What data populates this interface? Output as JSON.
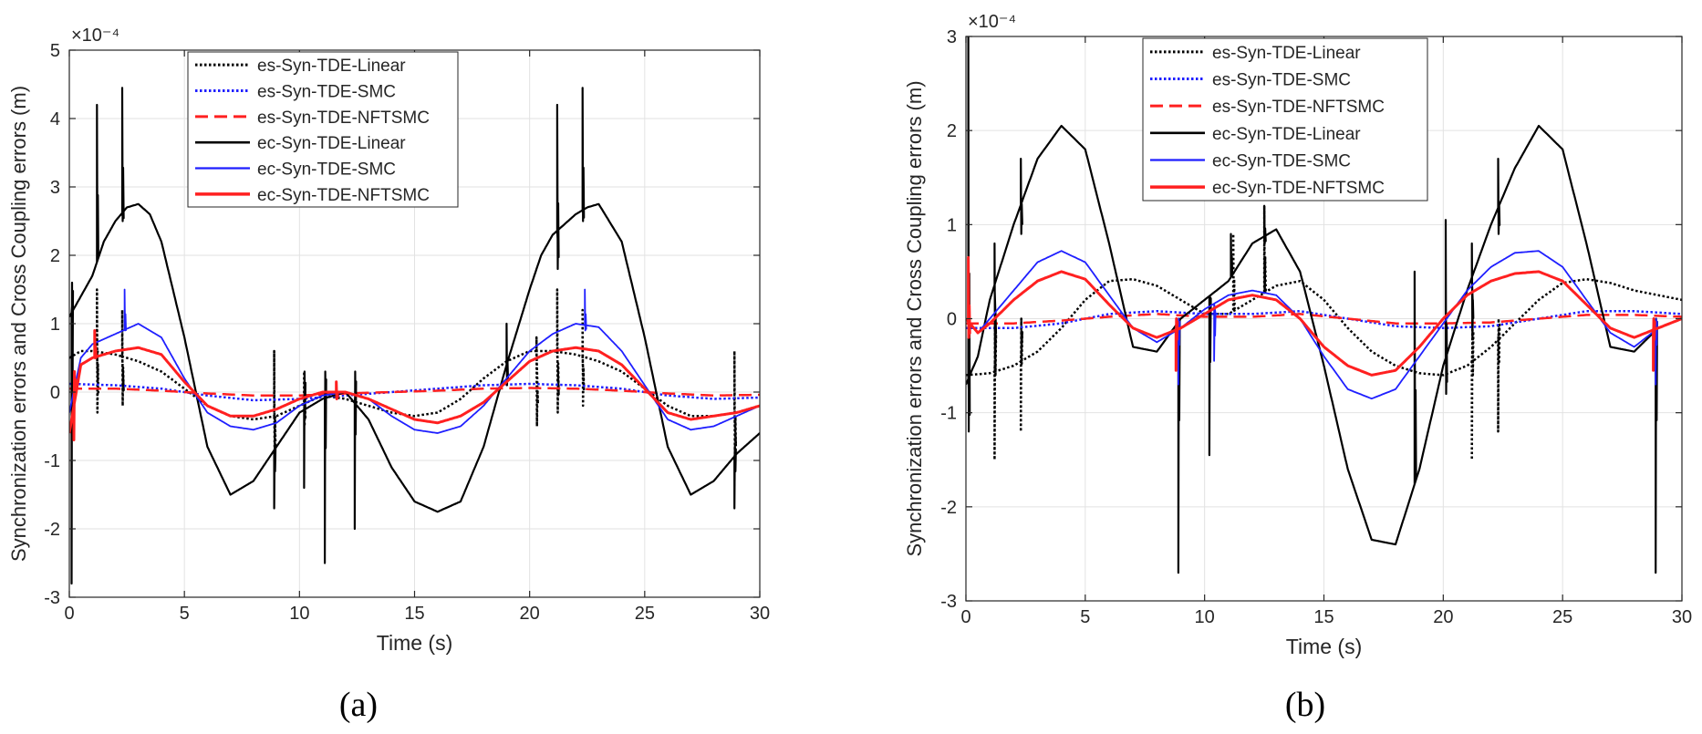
{
  "figure": {
    "panel_labels": [
      "(a)",
      "(b)"
    ]
  },
  "colors": {
    "black": "#000000",
    "blue": "#1f1fff",
    "red": "#ff2020",
    "grid": "#e2e2e2",
    "axis": "#262626"
  },
  "chart_data": [
    {
      "type": "line",
      "panel": "(a)",
      "title": "",
      "xlabel": "Time (s)",
      "ylabel": "Synchronization errors and Cross Coupling errors (m)",
      "exponent_label": "×10⁻⁴",
      "xlim": [
        0,
        30
      ],
      "ylim": [
        -3,
        5
      ],
      "xticks": [
        0,
        5,
        10,
        15,
        20,
        25,
        30
      ],
      "yticks": [
        -3,
        -2,
        -1,
        0,
        1,
        2,
        3,
        4,
        5
      ],
      "grid": true,
      "legend_position": "top-center",
      "legend": [
        "es-Syn-TDE-Linear",
        "es-Syn-TDE-SMC",
        "es-Syn-TDE-NFTSMC",
        "ec-Syn-TDE-Linear",
        "ec-Syn-TDE-SMC",
        "ec-Syn-TDE-NFTSMC"
      ],
      "series": [
        {
          "name": "es-Syn-TDE-Linear",
          "color": "#000000",
          "style": "dotted",
          "width": 2.5,
          "x": [
            0,
            0.5,
            1,
            2,
            3,
            4,
            5,
            6,
            7,
            8,
            9,
            10,
            11,
            12,
            13,
            14,
            15,
            16,
            17,
            18,
            19,
            20,
            21,
            22,
            23,
            24,
            25,
            26,
            27,
            28,
            29,
            30
          ],
          "y": [
            0.5,
            0.6,
            0.6,
            0.55,
            0.45,
            0.3,
            0.05,
            -0.2,
            -0.35,
            -0.4,
            -0.35,
            -0.2,
            -0.05,
            -0.1,
            -0.2,
            -0.3,
            -0.35,
            -0.3,
            -0.1,
            0.2,
            0.45,
            0.6,
            0.6,
            0.55,
            0.45,
            0.3,
            0.05,
            -0.2,
            -0.35,
            -0.35,
            -0.3,
            -0.2
          ],
          "spikes": [
            [
              1.2,
              1.5,
              -0.3
            ],
            [
              2.3,
              1.2,
              -0.2
            ],
            [
              8.9,
              0.6,
              -1.0
            ],
            [
              10.2,
              0.3,
              -0.5
            ],
            [
              20.3,
              0.8,
              -0.5
            ],
            [
              21.2,
              1.5,
              -0.3
            ],
            [
              22.3,
              1.2,
              -0.2
            ],
            [
              28.9,
              0.6,
              -1.0
            ]
          ]
        },
        {
          "name": "es-Syn-TDE-SMC",
          "color": "#1f1fff",
          "style": "dotted",
          "width": 2.5,
          "x": [
            0,
            2,
            4,
            6,
            8,
            10,
            12,
            14,
            16,
            18,
            20,
            22,
            24,
            26,
            28,
            30
          ],
          "y": [
            0.12,
            0.1,
            0.05,
            -0.05,
            -0.12,
            -0.1,
            -0.05,
            0.0,
            0.05,
            0.1,
            0.12,
            0.1,
            0.05,
            -0.05,
            -0.1,
            -0.08
          ],
          "spikes": []
        },
        {
          "name": "es-Syn-TDE-NFTSMC",
          "color": "#ff2020",
          "style": "dashed",
          "width": 2.5,
          "x": [
            0,
            2,
            4,
            6,
            8,
            10,
            12,
            14,
            16,
            18,
            20,
            22,
            24,
            26,
            28,
            30
          ],
          "y": [
            0.05,
            0.05,
            0.02,
            -0.02,
            -0.05,
            -0.05,
            -0.02,
            0.0,
            0.02,
            0.05,
            0.06,
            0.05,
            0.02,
            -0.02,
            -0.05,
            -0.04
          ],
          "spikes": []
        },
        {
          "name": "ec-Syn-TDE-Linear",
          "color": "#000000",
          "style": "solid",
          "width": 2.2,
          "x": [
            0,
            0.5,
            1,
            1.5,
            2,
            2.5,
            3,
            3.5,
            4,
            5,
            6,
            7,
            8,
            9,
            10,
            11,
            12,
            13,
            14,
            15,
            16,
            17,
            18,
            19,
            20,
            20.5,
            21,
            22,
            22.5,
            23,
            24,
            25,
            26,
            27,
            28,
            29,
            30
          ],
          "y": [
            1.1,
            1.4,
            1.7,
            2.2,
            2.5,
            2.7,
            2.75,
            2.6,
            2.2,
            0.8,
            -0.8,
            -1.5,
            -1.3,
            -0.8,
            -0.3,
            -0.1,
            0.0,
            -0.4,
            -1.1,
            -1.6,
            -1.75,
            -1.6,
            -0.8,
            0.4,
            1.5,
            2.0,
            2.3,
            2.6,
            2.7,
            2.75,
            2.2,
            0.8,
            -0.8,
            -1.5,
            -1.3,
            -0.9,
            -0.6
          ],
          "spikes": [
            [
              0.1,
              -2.8,
              1.6
            ],
            [
              1.2,
              4.2,
              2.0
            ],
            [
              2.3,
              4.45,
              2.5
            ],
            [
              8.9,
              -1.7,
              -0.8
            ],
            [
              10.2,
              -1.4,
              0.3
            ],
            [
              11.1,
              -2.5,
              0.3
            ],
            [
              12.4,
              -2.0,
              0.3
            ],
            [
              19.0,
              1.0,
              0.1
            ],
            [
              21.2,
              4.2,
              1.8
            ],
            [
              22.3,
              4.45,
              2.5
            ],
            [
              28.9,
              -1.7,
              -0.8
            ]
          ]
        },
        {
          "name": "ec-Syn-TDE-SMC",
          "color": "#1f1fff",
          "style": "solid",
          "width": 1.8,
          "x": [
            0,
            0.5,
            1,
            2,
            3,
            4,
            5,
            6,
            7,
            8,
            9,
            10,
            11,
            12,
            13,
            14,
            15,
            16,
            17,
            18,
            19,
            20,
            21,
            22,
            23,
            24,
            25,
            26,
            27,
            28,
            29,
            30
          ],
          "y": [
            -0.3,
            0.5,
            0.7,
            0.85,
            1.0,
            0.8,
            0.2,
            -0.3,
            -0.5,
            -0.55,
            -0.45,
            -0.2,
            -0.05,
            0.0,
            -0.1,
            -0.35,
            -0.55,
            -0.6,
            -0.5,
            -0.2,
            0.2,
            0.6,
            0.85,
            1.0,
            0.95,
            0.6,
            0.1,
            -0.4,
            -0.55,
            -0.5,
            -0.35,
            -0.2
          ],
          "spikes": [
            [
              2.4,
              1.5,
              0.9
            ],
            [
              22.4,
              1.5,
              0.9
            ]
          ]
        },
        {
          "name": "ec-Syn-TDE-NFTSMC",
          "color": "#ff2020",
          "style": "solid",
          "width": 3,
          "x": [
            0,
            0.5,
            1,
            2,
            3,
            4,
            5,
            6,
            7,
            8,
            9,
            10,
            11,
            12,
            13,
            14,
            15,
            16,
            17,
            18,
            19,
            20,
            21,
            22,
            23,
            24,
            25,
            26,
            27,
            28,
            29,
            30
          ],
          "y": [
            -0.6,
            0.4,
            0.5,
            0.6,
            0.65,
            0.55,
            0.15,
            -0.2,
            -0.35,
            -0.35,
            -0.25,
            -0.1,
            0.0,
            0.0,
            -0.1,
            -0.25,
            -0.4,
            -0.45,
            -0.35,
            -0.15,
            0.15,
            0.45,
            0.6,
            0.65,
            0.6,
            0.4,
            0.05,
            -0.3,
            -0.4,
            -0.35,
            -0.3,
            -0.2
          ],
          "spikes": [
            [
              0.2,
              -0.7,
              0.3
            ],
            [
              1.1,
              0.9,
              0.5
            ],
            [
              11.6,
              0.15,
              -0.1
            ]
          ]
        }
      ]
    },
    {
      "type": "line",
      "panel": "(b)",
      "title": "",
      "xlabel": "Time (s)",
      "ylabel": "Synchronization errors and Cross Coupling errors (m)",
      "exponent_label": "×10⁻⁴",
      "xlim": [
        0,
        30
      ],
      "ylim": [
        -3,
        3
      ],
      "xticks": [
        0,
        5,
        10,
        15,
        20,
        25,
        30
      ],
      "yticks": [
        -3,
        -2,
        -1,
        0,
        1,
        2,
        3
      ],
      "grid": true,
      "legend_position": "top-center",
      "legend": [
        "es-Syn-TDE-Linear",
        "es-Syn-TDE-SMC",
        "es-Syn-TDE-NFTSMC",
        "ec-Syn-TDE-Linear",
        "ec-Syn-TDE-SMC",
        "ec-Syn-TDE-NFTSMC"
      ],
      "series": [
        {
          "name": "es-Syn-TDE-Linear",
          "color": "#000000",
          "style": "dotted",
          "width": 2.5,
          "x": [
            0,
            1,
            2,
            3,
            4,
            5,
            6,
            7,
            8,
            9,
            10,
            11,
            12,
            13,
            14,
            15,
            16,
            17,
            18,
            19,
            20,
            21,
            22,
            23,
            24,
            25,
            26,
            27,
            28,
            29,
            30
          ],
          "y": [
            -0.6,
            -0.58,
            -0.5,
            -0.35,
            -0.1,
            0.2,
            0.4,
            0.42,
            0.35,
            0.2,
            0.05,
            0.05,
            0.2,
            0.35,
            0.4,
            0.2,
            -0.1,
            -0.35,
            -0.5,
            -0.58,
            -0.6,
            -0.5,
            -0.3,
            -0.05,
            0.2,
            0.38,
            0.42,
            0.38,
            0.3,
            0.25,
            0.2
          ],
          "spikes": [
            [
              1.2,
              -1.5,
              0.0
            ],
            [
              2.3,
              -1.2,
              0.0
            ],
            [
              11.2,
              0.9,
              0.1
            ],
            [
              12.5,
              1.2,
              0.3
            ],
            [
              21.2,
              -1.5,
              0.0
            ],
            [
              22.3,
              -1.2,
              0.0
            ]
          ]
        },
        {
          "name": "es-Syn-TDE-SMC",
          "color": "#1f1fff",
          "style": "dotted",
          "width": 2.5,
          "x": [
            0,
            2,
            4,
            6,
            8,
            10,
            12,
            14,
            16,
            18,
            20,
            22,
            24,
            26,
            28,
            30
          ],
          "y": [
            -0.1,
            -0.1,
            -0.05,
            0.05,
            0.08,
            0.05,
            0.05,
            0.08,
            0.0,
            -0.08,
            -0.1,
            -0.08,
            0.0,
            0.08,
            0.08,
            0.05
          ],
          "spikes": []
        },
        {
          "name": "es-Syn-TDE-NFTSMC",
          "color": "#ff2020",
          "style": "dashed",
          "width": 2.5,
          "x": [
            0,
            2,
            4,
            6,
            8,
            10,
            12,
            14,
            16,
            18,
            20,
            22,
            24,
            26,
            28,
            30
          ],
          "y": [
            -0.05,
            -0.05,
            -0.02,
            0.02,
            0.05,
            0.02,
            0.02,
            0.05,
            0.0,
            -0.05,
            -0.05,
            -0.04,
            0.0,
            0.04,
            0.04,
            0.02
          ],
          "spikes": []
        },
        {
          "name": "ec-Syn-TDE-Linear",
          "color": "#000000",
          "style": "solid",
          "width": 2.2,
          "x": [
            0,
            0.5,
            1,
            2,
            3,
            4,
            5,
            6,
            7,
            8,
            9,
            10,
            11,
            12,
            13,
            14,
            15,
            16,
            17,
            18,
            19,
            20,
            21,
            22,
            23,
            24,
            25,
            26,
            27,
            28,
            29,
            30
          ],
          "y": [
            -0.7,
            -0.4,
            0.2,
            1.0,
            1.7,
            2.05,
            1.8,
            0.8,
            -0.3,
            -0.35,
            0.0,
            0.2,
            0.4,
            0.8,
            0.95,
            0.5,
            -0.5,
            -1.6,
            -2.35,
            -2.4,
            -1.6,
            -0.5,
            0.3,
            1.0,
            1.6,
            2.05,
            1.8,
            0.8,
            -0.3,
            -0.35,
            -0.1,
            0.0
          ],
          "spikes": [
            [
              0.1,
              3.0,
              -1.2
            ],
            [
              1.2,
              0.8,
              -0.4
            ],
            [
              2.3,
              1.7,
              0.9
            ],
            [
              8.9,
              -2.7,
              0.0
            ],
            [
              10.2,
              -1.45,
              0.2
            ],
            [
              11.1,
              0.9,
              0.5
            ],
            [
              12.5,
              1.2,
              0.8
            ],
            [
              18.8,
              0.5,
              -1.6
            ],
            [
              20.1,
              1.05,
              -0.8
            ],
            [
              21.2,
              0.8,
              -0.2
            ],
            [
              22.3,
              1.7,
              0.9
            ],
            [
              28.9,
              -2.7,
              0.0
            ]
          ]
        },
        {
          "name": "ec-Syn-TDE-SMC",
          "color": "#1f1fff",
          "style": "solid",
          "width": 1.8,
          "x": [
            0,
            0.5,
            1,
            2,
            3,
            4,
            5,
            6,
            7,
            8,
            9,
            10,
            11,
            12,
            13,
            14,
            15,
            16,
            17,
            18,
            19,
            20,
            21,
            22,
            23,
            24,
            25,
            26,
            27,
            28,
            29,
            30
          ],
          "y": [
            0.0,
            -0.15,
            0.0,
            0.3,
            0.6,
            0.72,
            0.6,
            0.25,
            -0.1,
            -0.25,
            -0.1,
            0.1,
            0.25,
            0.3,
            0.25,
            0.0,
            -0.4,
            -0.75,
            -0.85,
            -0.75,
            -0.4,
            -0.05,
            0.3,
            0.55,
            0.7,
            0.72,
            0.55,
            0.2,
            -0.15,
            -0.3,
            -0.1,
            0.0
          ],
          "spikes": [
            [
              8.9,
              -0.7,
              0.0
            ],
            [
              10.4,
              -0.45,
              0.0
            ],
            [
              28.9,
              -0.7,
              0.0
            ]
          ]
        },
        {
          "name": "ec-Syn-TDE-NFTSMC",
          "color": "#ff2020",
          "style": "solid",
          "width": 3,
          "x": [
            0,
            0.5,
            1,
            2,
            3,
            4,
            5,
            6,
            7,
            8,
            9,
            10,
            11,
            12,
            13,
            14,
            15,
            16,
            17,
            18,
            19,
            20,
            21,
            22,
            23,
            24,
            25,
            26,
            27,
            28,
            29,
            30
          ],
          "y": [
            0.0,
            -0.15,
            -0.05,
            0.2,
            0.4,
            0.5,
            0.42,
            0.15,
            -0.1,
            -0.2,
            -0.1,
            0.05,
            0.2,
            0.25,
            0.2,
            0.0,
            -0.3,
            -0.5,
            -0.6,
            -0.55,
            -0.3,
            0.0,
            0.25,
            0.4,
            0.48,
            0.5,
            0.4,
            0.15,
            -0.1,
            -0.2,
            -0.1,
            0.0
          ],
          "spikes": [
            [
              0.1,
              0.65,
              -0.2
            ],
            [
              8.8,
              -0.55,
              0.0
            ],
            [
              28.8,
              -0.55,
              0.0
            ]
          ]
        }
      ]
    }
  ]
}
